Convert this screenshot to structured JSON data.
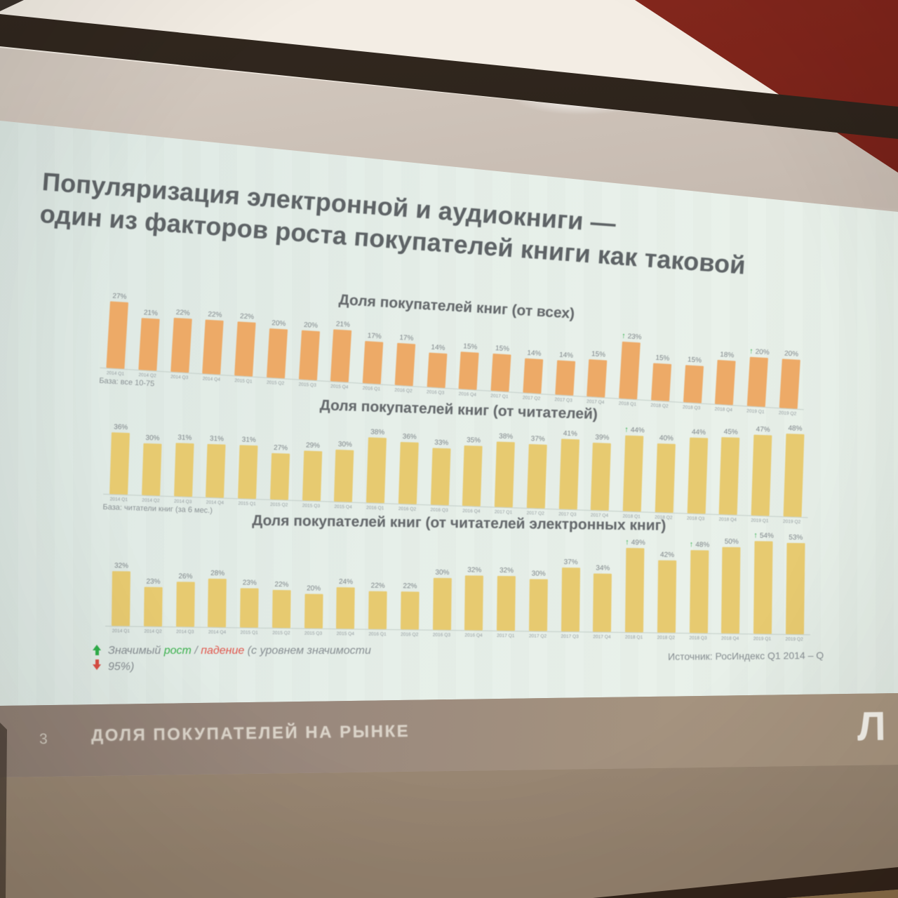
{
  "photo": {
    "wall_color": "#6e1d15",
    "ledge_color": "#e9e2d8",
    "frame_strip_color": "#241b14",
    "screen_surround_color": "#c2b5aa",
    "slide_background": "#e5eee8",
    "footer_band_color": "#9a897d",
    "orange_bar_color": "#edaa67",
    "yellow_bar_color": "#e7ca70",
    "significant_up_color": "#2fae4a",
    "significant_down_color": "#d94f45"
  },
  "slide": {
    "title_line1": "Популяризация электронной и аудиокниги —",
    "title_line2": "один из факторов роста покупателей книги как таковой",
    "legend": {
      "prefix": "Значимый ",
      "growth_word": "рост",
      "separator": " / ",
      "decline_word": "падение",
      "suffix": " (с уровнем значимости",
      "line2": "95%)"
    },
    "source": "Источник: РосИндекс Q1 2014 – Q"
  },
  "chart_data": [
    {
      "type": "bar",
      "title": "Доля покупателей книг (от всех)",
      "base_note": "База: все 10-75",
      "bar_color": "#edaa67",
      "ylabel": "",
      "xlabel": "",
      "ylim": [
        0,
        30
      ],
      "categories": [
        "2014 Q1",
        "2014 Q2",
        "2014 Q3",
        "2014 Q4",
        "2015 Q1",
        "2015 Q2",
        "2015 Q3",
        "2015 Q4",
        "2016 Q1",
        "2016 Q2",
        "2016 Q3",
        "2016 Q4",
        "2017 Q1",
        "2017 Q2",
        "2017 Q3",
        "2017 Q4",
        "2018 Q1",
        "2018 Q2",
        "2018 Q3",
        "2018 Q4",
        "2019 Q1",
        "2019 Q2"
      ],
      "values": [
        27,
        21,
        22,
        22,
        22,
        20,
        20,
        21,
        17,
        17,
        14,
        15,
        15,
        14,
        14,
        15,
        23,
        15,
        15,
        18,
        20,
        20
      ],
      "value_suffix": "%",
      "significant_up_indices": [
        16,
        20
      ]
    },
    {
      "type": "bar",
      "title": "Доля покупателей книг (от читателей)",
      "base_note": "База: читатели книг (за 6 мес.)",
      "bar_color": "#e7ca70",
      "ylabel": "",
      "xlabel": "",
      "ylim": [
        0,
        55
      ],
      "categories": [
        "2014 Q1",
        "2014 Q2",
        "2014 Q3",
        "2014 Q4",
        "2015 Q1",
        "2015 Q2",
        "2015 Q3",
        "2015 Q4",
        "2016 Q1",
        "2016 Q2",
        "2016 Q3",
        "2016 Q4",
        "2017 Q1",
        "2017 Q2",
        "2017 Q3",
        "2017 Q4",
        "2018 Q1",
        "2018 Q2",
        "2018 Q3",
        "2018 Q4",
        "2019 Q1",
        "2019 Q2"
      ],
      "values": [
        36,
        30,
        31,
        31,
        31,
        27,
        29,
        30,
        38,
        36,
        33,
        35,
        38,
        37,
        41,
        39,
        44,
        40,
        44,
        45,
        47,
        48
      ],
      "value_suffix": "%",
      "significant_up_indices": [
        16
      ]
    },
    {
      "type": "bar",
      "title": "Доля покупателей книг (от читателей электронных книг)",
      "base_note": "",
      "bar_color": "#e7ca70",
      "ylabel": "",
      "xlabel": "",
      "ylim": [
        0,
        60
      ],
      "categories": [
        "2014 Q1",
        "2014 Q2",
        "2014 Q3",
        "2014 Q4",
        "2015 Q1",
        "2015 Q2",
        "2015 Q3",
        "2015 Q4",
        "2016 Q1",
        "2016 Q2",
        "2016 Q3",
        "2016 Q4",
        "2017 Q1",
        "2017 Q2",
        "2017 Q3",
        "2017 Q4",
        "2018 Q1",
        "2018 Q2",
        "2018 Q3",
        "2018 Q4",
        "2019 Q1",
        "2019 Q2"
      ],
      "values": [
        32,
        23,
        26,
        28,
        23,
        22,
        20,
        24,
        22,
        22,
        30,
        32,
        32,
        30,
        37,
        34,
        49,
        42,
        48,
        50,
        54,
        53
      ],
      "value_suffix": "%",
      "significant_up_indices": [
        16,
        18,
        20
      ]
    }
  ],
  "footer": {
    "page_number": "3",
    "section_title": "ДОЛЯ ПОКУПАТЕЛЕЙ НА РЫНКЕ",
    "logo_letter": "Л"
  }
}
